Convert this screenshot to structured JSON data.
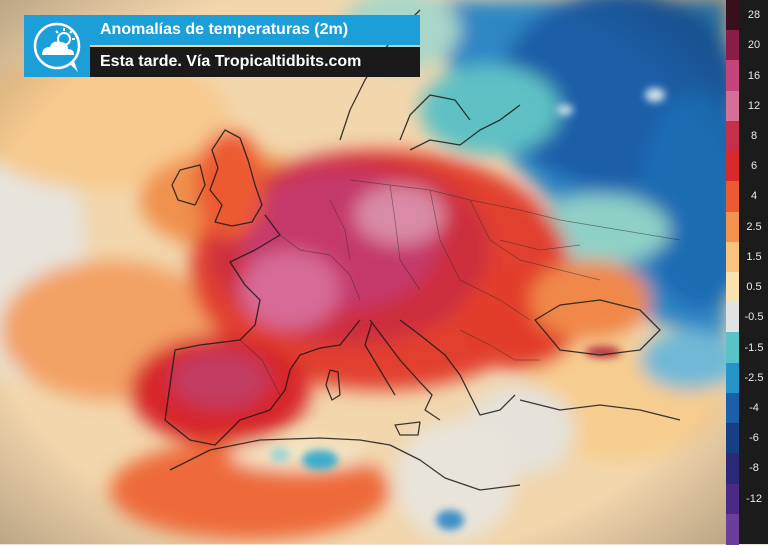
{
  "header": {
    "title": "Anomalías de temperaturas (2m)",
    "subtitle": "Esta tarde. Vía Tropicaltidbits.com",
    "logo_icon": "cloud-sun-icon",
    "accent_color": "#1c9fd9",
    "subtitle_bg": "#1a1a1a"
  },
  "legend": {
    "items": [
      {
        "label": "28",
        "color": "#3a0f1c"
      },
      {
        "label": "20",
        "color": "#8a1c48"
      },
      {
        "label": "16",
        "color": "#c24478"
      },
      {
        "label": "12",
        "color": "#d66f95"
      },
      {
        "label": "8",
        "color": "#c4304c"
      },
      {
        "label": "6",
        "color": "#d7282c"
      },
      {
        "label": "4",
        "color": "#ec5a32"
      },
      {
        "label": "2.5",
        "color": "#f4934f"
      },
      {
        "label": "1.5",
        "color": "#f9c27e"
      },
      {
        "label": "0.5",
        "color": "#f8e3b0"
      },
      {
        "label": "-0.5",
        "color": "#dfe3e3"
      },
      {
        "label": "-1.5",
        "color": "#59c3c6"
      },
      {
        "label": "-2.5",
        "color": "#2693c9"
      },
      {
        "label": "-4",
        "color": "#1b5fa8"
      },
      {
        "label": "-6",
        "color": "#173f86"
      },
      {
        "label": "-8",
        "color": "#2c2a78"
      },
      {
        "label": "-12",
        "color": "#4a2a86"
      },
      {
        "label": "",
        "color": "#6b3e9a"
      }
    ]
  }
}
